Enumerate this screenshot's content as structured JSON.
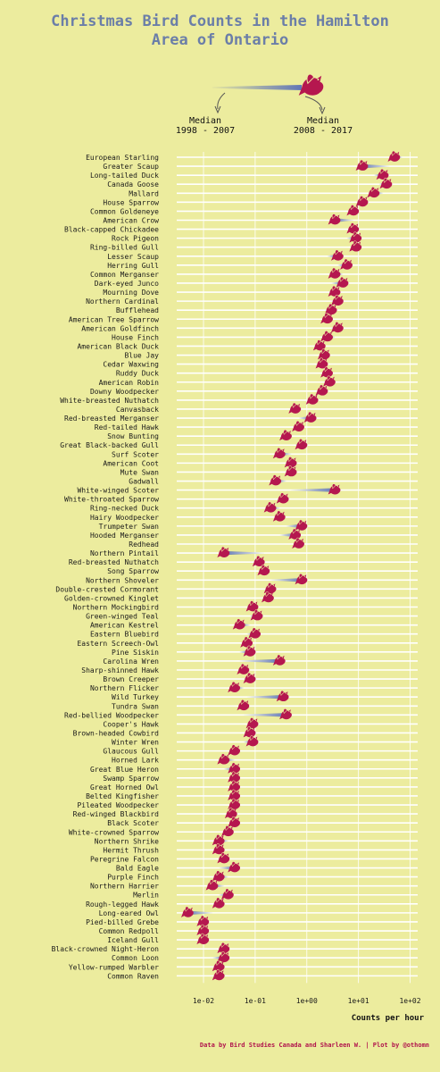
{
  "chart_data": {
    "type": "dumbbell",
    "title_line1": "Christmas Bird Counts in the Hamilton",
    "title_line2": "Area of Ontario",
    "legend": {
      "early_line1": "Median",
      "early_line2": "1998 - 2007",
      "late_line1": "Median",
      "late_line2": "2008 - 2017"
    },
    "xlabel": "Counts per hour",
    "xscale": "log10",
    "xlim": [
      0.004,
      140
    ],
    "x_ticks": [
      "1e-02",
      "1e-01",
      "1e+00",
      "1e+01",
      "1e+02"
    ],
    "x_tick_values": [
      0.01,
      0.1,
      1,
      10,
      100
    ],
    "colors": {
      "bird": "#b5174f",
      "line": "#5a70b8",
      "grid": "#ffffff",
      "title": "#6b7ea8"
    },
    "credit": "Data by Bird Studies Canada and Sharleen W. | Plot by @othomn",
    "species": [
      {
        "name": "European Starling",
        "early": 70,
        "late": 50
      },
      {
        "name": "Greater Scaup",
        "early": 40,
        "late": 12
      },
      {
        "name": "Long-tailed Duck",
        "early": 20,
        "late": 30
      },
      {
        "name": "Canada Goose",
        "early": 25,
        "late": 35
      },
      {
        "name": "Mallard",
        "early": 30,
        "late": 20
      },
      {
        "name": "House Sparrow",
        "early": 15,
        "late": 12
      },
      {
        "name": "Common Goldeneye",
        "early": 10,
        "late": 8
      },
      {
        "name": "American Crow",
        "early": 8,
        "late": 3.5
      },
      {
        "name": "Black-capped Chickadee",
        "early": 7,
        "late": 8
      },
      {
        "name": "Rock Pigeon",
        "early": 6,
        "late": 9
      },
      {
        "name": "Ring-billed Gull",
        "early": 8,
        "late": 9
      },
      {
        "name": "Lesser Scaup",
        "early": 2.5,
        "late": 4
      },
      {
        "name": "Herring Gull",
        "early": 4,
        "late": 6
      },
      {
        "name": "Common Merganser",
        "early": 5,
        "late": 3.5
      },
      {
        "name": "Dark-eyed Junco",
        "early": 3,
        "late": 5
      },
      {
        "name": "Mourning Dove",
        "early": 4,
        "late": 3.5
      },
      {
        "name": "Northern Cardinal",
        "early": 3,
        "late": 4
      },
      {
        "name": "Bufflehead",
        "early": 2.5,
        "late": 3
      },
      {
        "name": "American Tree Sparrow",
        "early": 2,
        "late": 2.5
      },
      {
        "name": "American Goldfinch",
        "early": 3,
        "late": 4
      },
      {
        "name": "House Finch",
        "early": 3.5,
        "late": 2.5
      },
      {
        "name": "American Black Duck",
        "early": 2,
        "late": 1.8
      },
      {
        "name": "Blue Jay",
        "early": 1.8,
        "late": 2.2
      },
      {
        "name": "Cedar Waxwing",
        "early": 2.2,
        "late": 2
      },
      {
        "name": "Ruddy Duck",
        "early": 2.3,
        "late": 2.5
      },
      {
        "name": "American Robin",
        "early": 2.5,
        "late": 2.8
      },
      {
        "name": "Downy Woodpecker",
        "early": 1.8,
        "late": 2
      },
      {
        "name": "White-breasted Nuthatch",
        "early": 1.5,
        "late": 1.3
      },
      {
        "name": "Canvasback",
        "early": 0.8,
        "late": 0.6
      },
      {
        "name": "Red-breasted Merganser",
        "early": 0.7,
        "late": 1.2
      },
      {
        "name": "Red-tailed Hawk",
        "early": 0.8,
        "late": 0.7
      },
      {
        "name": "Snow Bunting",
        "early": 0.4,
        "late": 0.4
      },
      {
        "name": "Great Black-backed Gull",
        "early": 0.6,
        "late": 0.8
      },
      {
        "name": "Surf Scoter",
        "early": 0.5,
        "late": 0.3
      },
      {
        "name": "American Coot",
        "early": 0.5,
        "late": 0.5
      },
      {
        "name": "Mute Swan",
        "early": 0.5,
        "late": 0.5
      },
      {
        "name": "Gadwall",
        "early": 0.4,
        "late": 0.25
      },
      {
        "name": "White-winged Scoter",
        "early": 0.5,
        "late": 3.5
      },
      {
        "name": "White-throated Sparrow",
        "early": 0.4,
        "late": 0.35
      },
      {
        "name": "Ring-necked Duck",
        "early": 0.3,
        "late": 0.2
      },
      {
        "name": "Hairy Woodpecker",
        "early": 0.3,
        "late": 0.3
      },
      {
        "name": "Trumpeter Swan",
        "early": 0.4,
        "late": 0.8
      },
      {
        "name": "Hooded Merganser",
        "early": 0.3,
        "late": 0.6
      },
      {
        "name": "Redhead",
        "early": 0.7,
        "late": 0.7
      },
      {
        "name": "Northern Pintail",
        "early": 0.15,
        "late": 0.025
      },
      {
        "name": "Red-breasted Nuthatch",
        "early": 0.15,
        "late": 0.12
      },
      {
        "name": "Song Sparrow",
        "early": 0.12,
        "late": 0.15
      },
      {
        "name": "Northern Shoveler",
        "early": 0.2,
        "late": 0.8
      },
      {
        "name": "Double-crested Cormorant",
        "early": 0.2,
        "late": 0.2
      },
      {
        "name": "Golden-crowned Kinglet",
        "early": 0.2,
        "late": 0.18
      },
      {
        "name": "Northern Mockingbird",
        "early": 0.07,
        "late": 0.09
      },
      {
        "name": "Green-winged Teal",
        "early": 0.08,
        "late": 0.11
      },
      {
        "name": "American Kestrel",
        "early": 0.08,
        "late": 0.05
      },
      {
        "name": "Eastern Bluebird",
        "early": 0.07,
        "late": 0.1
      },
      {
        "name": "Eastern Screech-Owl",
        "early": 0.07,
        "late": 0.07
      },
      {
        "name": "Pine Siskin",
        "early": 0.05,
        "late": 0.08
      },
      {
        "name": "Carolina Wren",
        "early": 0.05,
        "late": 0.3
      },
      {
        "name": "Sharp-shinned Hawk",
        "early": 0.08,
        "late": 0.06
      },
      {
        "name": "Brown Creeper",
        "early": 0.06,
        "late": 0.08
      },
      {
        "name": "Northern Flicker",
        "early": 0.06,
        "late": 0.04
      },
      {
        "name": "Wild Turkey",
        "early": 0.07,
        "late": 0.35
      },
      {
        "name": "Tundra Swan",
        "early": 0.06,
        "late": 0.06
      },
      {
        "name": "Red-bellied Woodpecker",
        "early": 0.06,
        "late": 0.4
      },
      {
        "name": "Cooper's Hawk",
        "early": 0.08,
        "late": 0.09
      },
      {
        "name": "Brown-headed Cowbird",
        "early": 0.1,
        "late": 0.08
      },
      {
        "name": "Winter Wren",
        "early": 0.06,
        "late": 0.09
      },
      {
        "name": "Glaucous Gull",
        "early": 0.04,
        "late": 0.04
      },
      {
        "name": "Horned Lark",
        "early": 0.04,
        "late": 0.025
      },
      {
        "name": "Great Blue Heron",
        "early": 0.025,
        "late": 0.04
      },
      {
        "name": "Swamp Sparrow",
        "early": 0.04,
        "late": 0.04
      },
      {
        "name": "Great Horned Owl",
        "early": 0.04,
        "late": 0.04
      },
      {
        "name": "Belted Kingfisher",
        "early": 0.035,
        "late": 0.04
      },
      {
        "name": "Pileated Woodpecker",
        "early": 0.04,
        "late": 0.04
      },
      {
        "name": "Red-winged Blackbird",
        "early": 0.03,
        "late": 0.035
      },
      {
        "name": "Black Scoter",
        "early": 0.04,
        "late": 0.04
      },
      {
        "name": "White-crowned Sparrow",
        "early": 0.025,
        "late": 0.03
      },
      {
        "name": "Northern Shrike",
        "early": 0.03,
        "late": 0.02
      },
      {
        "name": "Hermit Thrush",
        "early": 0.02,
        "late": 0.02
      },
      {
        "name": "Peregrine Falcon",
        "early": 0.02,
        "late": 0.025
      },
      {
        "name": "Bald Eagle",
        "early": 0.02,
        "late": 0.04
      },
      {
        "name": "Purple Finch",
        "early": 0.03,
        "late": 0.02
      },
      {
        "name": "Northern Harrier",
        "early": 0.025,
        "late": 0.015
      },
      {
        "name": "Merlin",
        "early": 0.02,
        "late": 0.03
      },
      {
        "name": "Rough-legged Hawk",
        "early": 0.02,
        "late": 0.02
      },
      {
        "name": "Long-eared Owl",
        "early": 0.015,
        "late": 0.005
      },
      {
        "name": "Pied-billed Grebe",
        "early": 0.012,
        "late": 0.01
      },
      {
        "name": "Common Redpoll",
        "early": 0.01,
        "late": 0.01
      },
      {
        "name": "Iceland Gull",
        "early": 0.012,
        "late": 0.01
      },
      {
        "name": "Black-crowned Night-Heron",
        "early": 0.02,
        "late": 0.025
      },
      {
        "name": "Common Loon",
        "early": 0.015,
        "late": 0.025
      },
      {
        "name": "Yellow-rumped Warbler",
        "early": 0.02,
        "late": 0.02
      },
      {
        "name": "Common Raven",
        "early": 0.02,
        "late": 0.02
      }
    ]
  }
}
